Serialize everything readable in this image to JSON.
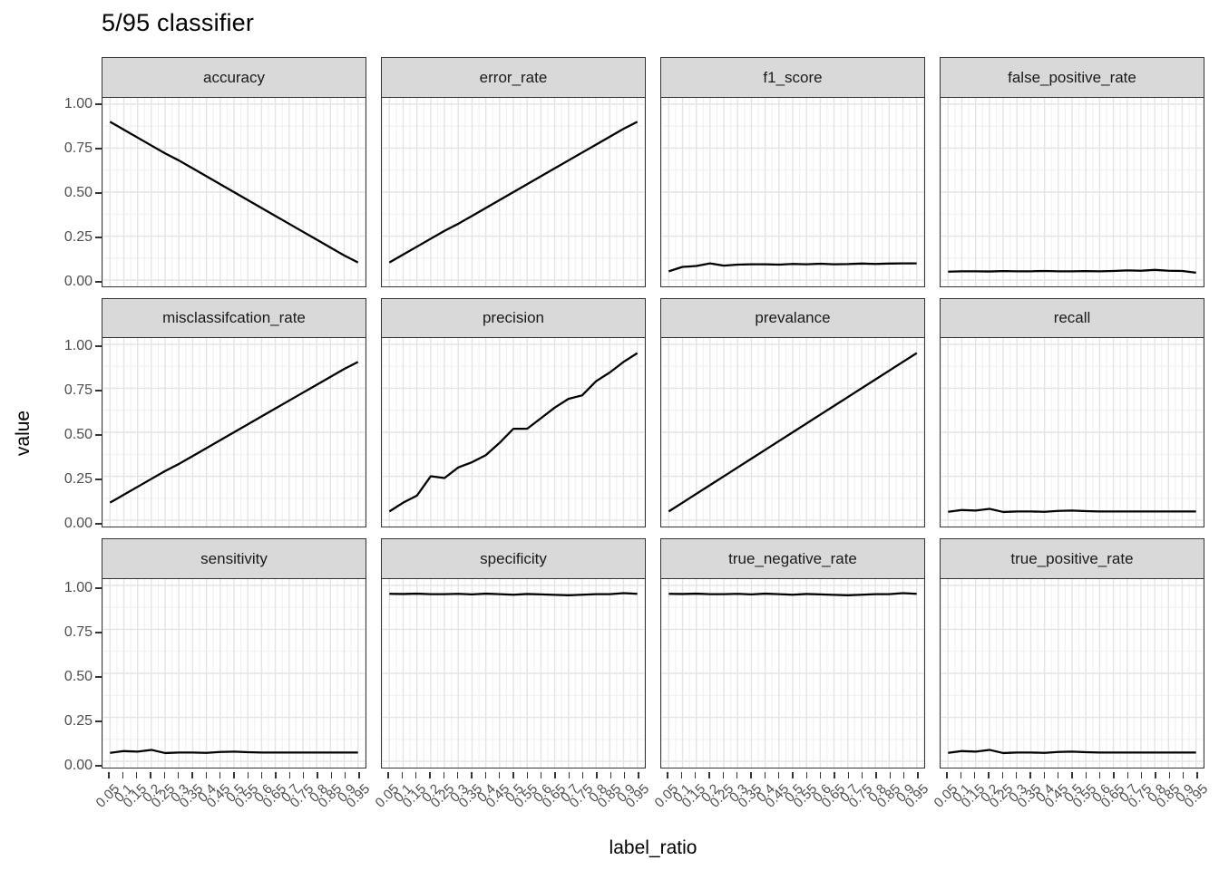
{
  "title": "5/95 classifier",
  "axes": {
    "x_title": "label_ratio",
    "y_title": "value",
    "x_tick_labels": [
      "0.05",
      "0.1",
      "0.15",
      "0.2",
      "0.25",
      "0.3",
      "0.35",
      "0.4",
      "0.45",
      "0.5",
      "0.55",
      "0.6",
      "0.65",
      "0.7",
      "0.75",
      "0.8",
      "0.85",
      "0.9",
      "0.95"
    ],
    "y_tick_labels": [
      "1.00",
      "0.75",
      "0.50",
      "0.25",
      "0.00"
    ],
    "y_tick_values": [
      1,
      0.75,
      0.5,
      0.25,
      0
    ]
  },
  "colors": {
    "background": "#ffffff",
    "strip_fill": "#d9d9d9",
    "panel_border": "#333333",
    "grid_major": "#e4e4e4",
    "grid_minor": "#f0f0f0",
    "line": "#000000",
    "tick_label": "#4d4d4d",
    "tick_mark": "#333333",
    "text": "#000000"
  },
  "chart_data": {
    "type": "line",
    "title": "5/95 classifier",
    "xlabel": "label_ratio",
    "ylabel": "value",
    "layout": "facet_wrap, 3 rows x 4 cols, shared axes",
    "legend_position": "none",
    "grid": true,
    "ylim": [
      0,
      1
    ],
    "x": [
      0.05,
      0.1,
      0.15,
      0.2,
      0.25,
      0.3,
      0.35,
      0.4,
      0.45,
      0.5,
      0.55,
      0.6,
      0.65,
      0.7,
      0.75,
      0.8,
      0.85,
      0.9,
      0.95
    ],
    "facets": [
      {
        "name": "accuracy",
        "values": [
          0.9,
          0.855,
          0.81,
          0.765,
          0.72,
          0.68,
          0.635,
          0.59,
          0.545,
          0.5,
          0.455,
          0.41,
          0.365,
          0.32,
          0.275,
          0.23,
          0.185,
          0.14,
          0.1
        ]
      },
      {
        "name": "error_rate",
        "values": [
          0.1,
          0.145,
          0.19,
          0.235,
          0.28,
          0.32,
          0.365,
          0.41,
          0.455,
          0.5,
          0.545,
          0.59,
          0.635,
          0.68,
          0.725,
          0.77,
          0.815,
          0.86,
          0.9
        ]
      },
      {
        "name": "f1_score",
        "values": [
          0.05,
          0.075,
          0.08,
          0.095,
          0.082,
          0.088,
          0.09,
          0.09,
          0.088,
          0.092,
          0.09,
          0.093,
          0.09,
          0.091,
          0.094,
          0.092,
          0.094,
          0.095,
          0.095
        ]
      },
      {
        "name": "false_positive_rate",
        "values": [
          0.048,
          0.05,
          0.05,
          0.049,
          0.051,
          0.05,
          0.05,
          0.052,
          0.05,
          0.05,
          0.051,
          0.05,
          0.052,
          0.055,
          0.053,
          0.058,
          0.053,
          0.052,
          0.042
        ]
      },
      {
        "name": "misclassifcation_rate",
        "values": [
          0.1,
          0.145,
          0.19,
          0.235,
          0.28,
          0.32,
          0.365,
          0.41,
          0.455,
          0.5,
          0.545,
          0.59,
          0.635,
          0.68,
          0.725,
          0.77,
          0.815,
          0.86,
          0.9
        ]
      },
      {
        "name": "precision",
        "values": [
          0.05,
          0.1,
          0.14,
          0.25,
          0.24,
          0.3,
          0.33,
          0.37,
          0.44,
          0.52,
          0.52,
          0.58,
          0.64,
          0.69,
          0.71,
          0.79,
          0.84,
          0.9,
          0.95
        ]
      },
      {
        "name": "prevalance",
        "values": [
          0.05,
          0.1,
          0.15,
          0.2,
          0.25,
          0.3,
          0.35,
          0.4,
          0.45,
          0.5,
          0.55,
          0.6,
          0.65,
          0.7,
          0.75,
          0.8,
          0.85,
          0.9,
          0.95
        ]
      },
      {
        "name": "recall",
        "values": [
          0.048,
          0.058,
          0.055,
          0.065,
          0.047,
          0.05,
          0.05,
          0.048,
          0.053,
          0.055,
          0.052,
          0.05,
          0.05,
          0.05,
          0.05,
          0.05,
          0.05,
          0.05,
          0.05
        ]
      },
      {
        "name": "sensitivity",
        "values": [
          0.048,
          0.058,
          0.055,
          0.065,
          0.047,
          0.05,
          0.05,
          0.048,
          0.053,
          0.055,
          0.052,
          0.05,
          0.05,
          0.05,
          0.05,
          0.05,
          0.05,
          0.05,
          0.05
        ]
      },
      {
        "name": "specificity",
        "values": [
          0.952,
          0.951,
          0.953,
          0.95,
          0.95,
          0.952,
          0.949,
          0.953,
          0.95,
          0.947,
          0.951,
          0.949,
          0.946,
          0.944,
          0.947,
          0.95,
          0.95,
          0.956,
          0.952
        ]
      },
      {
        "name": "true_negative_rate",
        "values": [
          0.952,
          0.951,
          0.953,
          0.95,
          0.95,
          0.952,
          0.949,
          0.953,
          0.95,
          0.947,
          0.951,
          0.949,
          0.946,
          0.944,
          0.947,
          0.95,
          0.95,
          0.956,
          0.952
        ]
      },
      {
        "name": "true_positive_rate",
        "values": [
          0.048,
          0.058,
          0.055,
          0.065,
          0.047,
          0.05,
          0.05,
          0.048,
          0.053,
          0.055,
          0.052,
          0.05,
          0.05,
          0.05,
          0.05,
          0.05,
          0.05,
          0.05,
          0.05
        ]
      }
    ]
  }
}
